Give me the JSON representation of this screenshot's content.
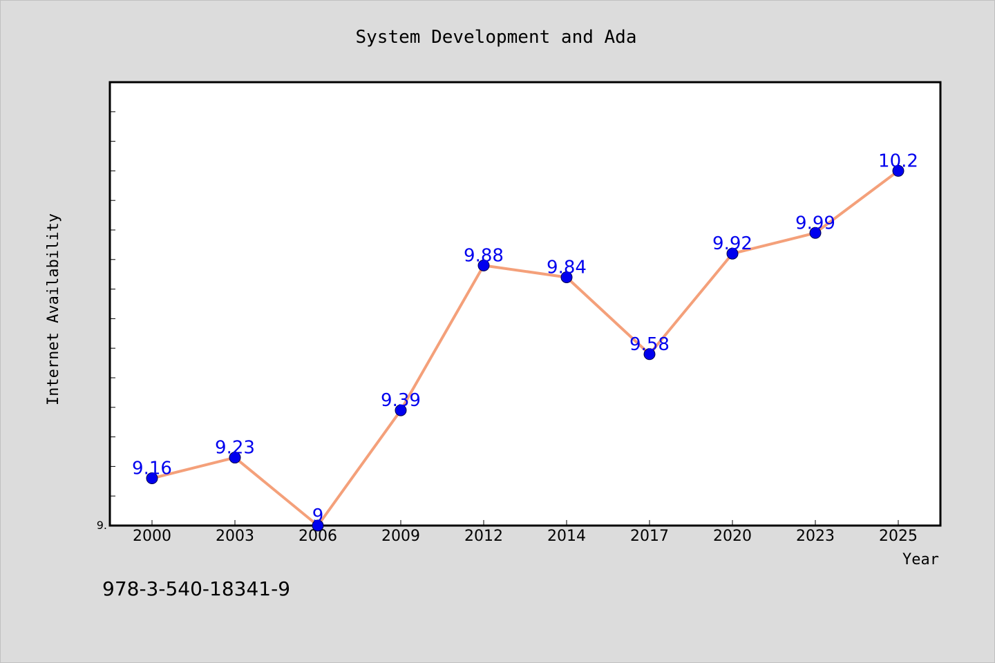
{
  "chart_data": {
    "type": "line",
    "title": "System Development and Ada",
    "xlabel": "Year",
    "ylabel": "Internet Availability",
    "categories": [
      "2000",
      "2003",
      "2006",
      "2009",
      "2012",
      "2014",
      "2017",
      "2020",
      "2023",
      "2025"
    ],
    "series": [
      {
        "values": [
          9.16,
          9.23,
          9.0,
          9.39,
          9.88,
          9.84,
          9.58,
          9.92,
          9.99,
          10.2
        ],
        "data_labels": [
          "9.16",
          "9.23",
          "9",
          "9.39",
          "9.88",
          "9.84",
          "9.58",
          "9.92",
          "9.99",
          "10.2"
        ]
      }
    ],
    "ylim": [
      9.0,
      10.5
    ],
    "ytick_label": "9.",
    "grid": false,
    "line_color": "#f4a07a",
    "marker_color": "#0000ee",
    "label_color": "#0000ee"
  },
  "footer": {
    "isbn": "978-3-540-18341-9"
  }
}
